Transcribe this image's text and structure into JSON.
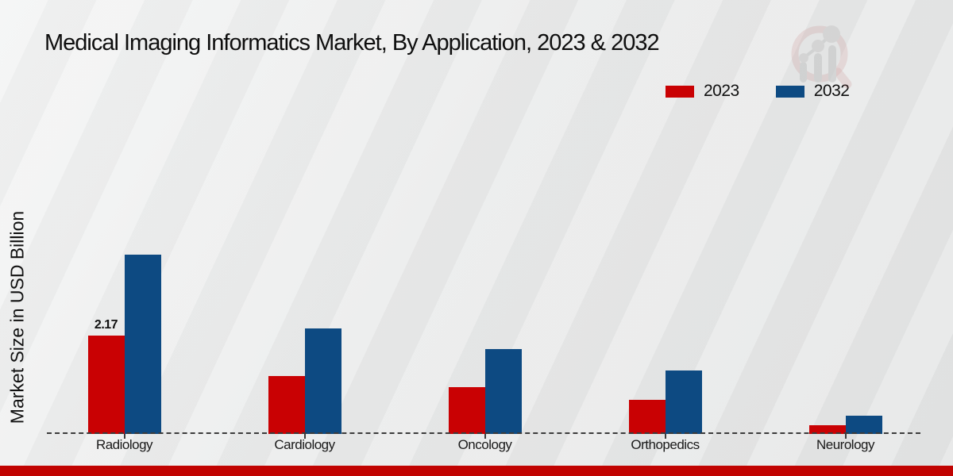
{
  "title": "Medical Imaging Informatics Market, By Application, 2023 & 2032",
  "ylabel": "Market Size in USD Billion",
  "legend": {
    "items": [
      {
        "label": "2023",
        "color": "#c90103"
      },
      {
        "label": "2032",
        "color": "#0d4a82"
      }
    ]
  },
  "chart_data": {
    "type": "bar",
    "title": "Medical Imaging Informatics Market, By Application, 2023 & 2032",
    "xlabel": "",
    "ylabel": "Market Size in USD Billion",
    "categories": [
      "Radiology",
      "Cardiology",
      "Oncology",
      "Orthopedics",
      "Neurology"
    ],
    "series": [
      {
        "name": "2023",
        "color": "#c90103",
        "values": [
          2.17,
          1.28,
          1.03,
          0.76,
          0.2
        ],
        "labels": [
          "2.17",
          null,
          null,
          null,
          null
        ]
      },
      {
        "name": "2032",
        "color": "#0d4a82",
        "values": [
          3.96,
          2.33,
          1.88,
          1.4,
          0.4
        ],
        "labels": [
          null,
          null,
          null,
          null,
          null
        ]
      }
    ],
    "ylim": [
      0,
      4.2
    ],
    "grid": false,
    "axis_visible": false,
    "baseline_style": "dashed",
    "legend_position": "top-right"
  },
  "footer": {
    "bar_color": "#c10301"
  },
  "watermark_icon": "magnifier-bar-chart-logo"
}
